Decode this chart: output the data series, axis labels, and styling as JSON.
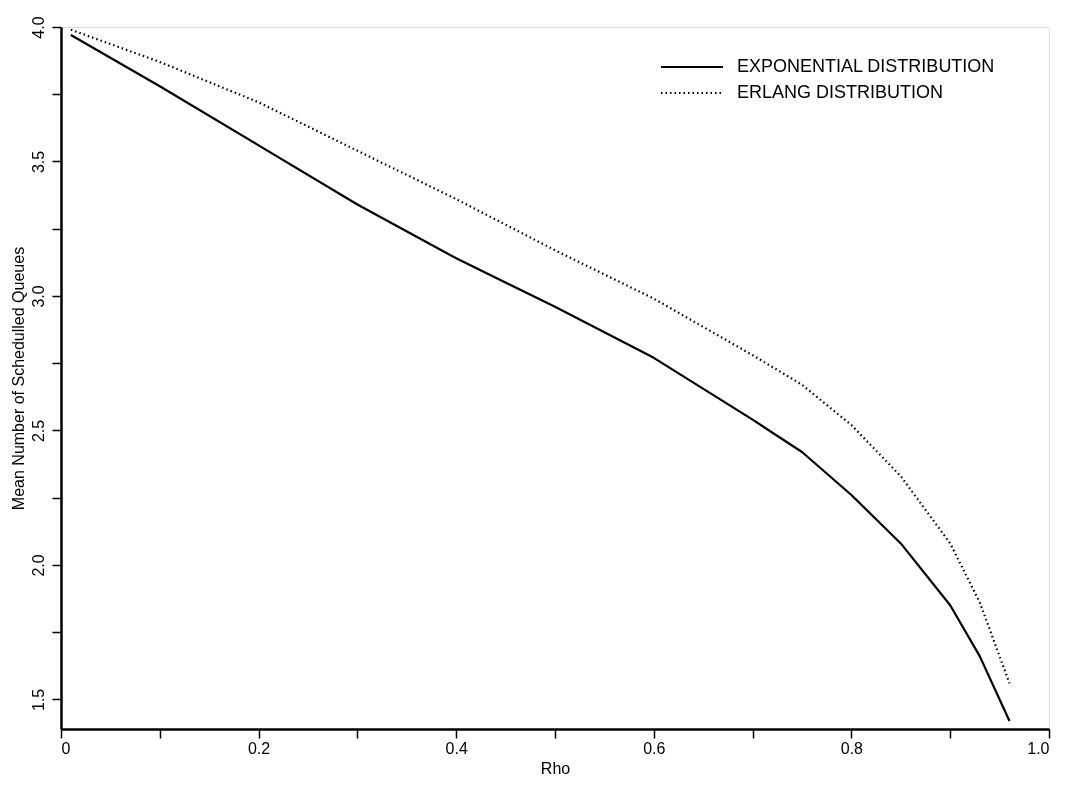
{
  "chart_data": {
    "type": "line",
    "xlabel": "Rho",
    "ylabel": "Mean Number of Schedulled Queues",
    "x": [
      0.01,
      0.1,
      0.2,
      0.3,
      0.4,
      0.5,
      0.6,
      0.7,
      0.75,
      0.8,
      0.85,
      0.9,
      0.93,
      0.96
    ],
    "series": [
      {
        "name": "EXPONENTIAL DISTRIBUTION",
        "color": "#000000",
        "line_style": "solid",
        "values": [
          3.97,
          3.78,
          3.56,
          3.34,
          3.14,
          2.96,
          2.77,
          2.54,
          2.42,
          2.26,
          2.08,
          1.85,
          1.66,
          1.42
        ]
      },
      {
        "name": "ERLANG DISTRIBUTION",
        "color": "#000000",
        "line_style": "dotted",
        "values": [
          3.99,
          3.87,
          3.72,
          3.54,
          3.36,
          3.17,
          2.99,
          2.78,
          2.67,
          2.52,
          2.33,
          2.08,
          1.86,
          1.56
        ]
      }
    ],
    "xlim": [
      0,
      1.0
    ],
    "ylim": [
      1.39,
      4.0
    ],
    "xticks": [
      0,
      {
        "value": 0.1,
        "label": null
      },
      {
        "value": 0.2,
        "label": "0.2"
      },
      {
        "value": 0.3,
        "label": null
      },
      {
        "value": 0.4,
        "label": "0.4"
      },
      {
        "value": 0.5,
        "label": null
      },
      {
        "value": 0.6,
        "label": "0.6"
      },
      {
        "value": 0.7,
        "label": null
      },
      {
        "value": 0.8,
        "label": "0.8"
      },
      {
        "value": 0.9,
        "label": null
      },
      {
        "value": 1.0,
        "label": "1.0"
      }
    ],
    "yticks": [
      {
        "value": 1.5,
        "label": "1.5"
      },
      {
        "value": 1.75,
        "label": null
      },
      {
        "value": 2.0,
        "label": "2.0"
      },
      {
        "value": 2.25,
        "label": null
      },
      {
        "value": 2.5,
        "label": "2.5"
      },
      {
        "value": 2.75,
        "label": null
      },
      {
        "value": 3.0,
        "label": "3.0"
      },
      {
        "value": 3.25,
        "label": null
      },
      {
        "value": 3.5,
        "label": "3.5"
      },
      {
        "value": 3.75,
        "label": null
      },
      {
        "value": 4.0,
        "label": "4.0"
      }
    ],
    "grid": false,
    "legend": "top right",
    "marker": "none"
  }
}
